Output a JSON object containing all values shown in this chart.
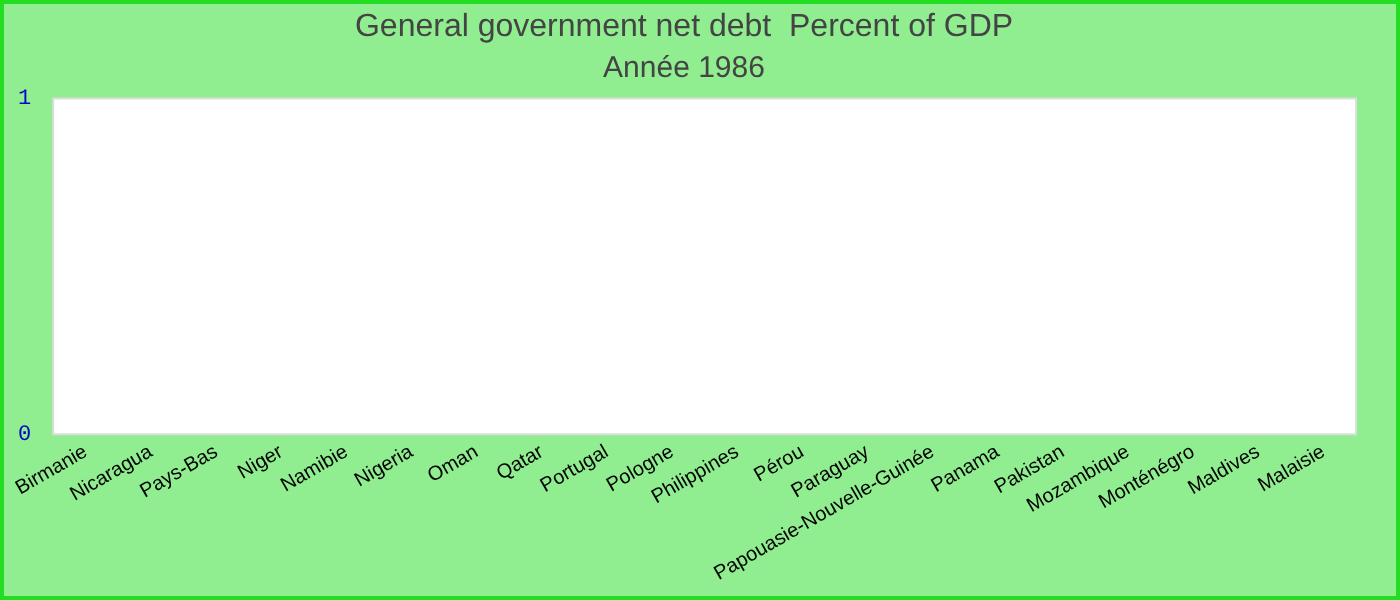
{
  "chart_data": {
    "type": "bar",
    "title": "General government net debt  Percent of GDP",
    "subtitle": "Année 1986",
    "categories": [
      "Birmanie",
      "Nicaragua",
      "Pays-Bas",
      "Niger",
      "Namibie",
      "Nigeria",
      "Oman",
      "Qatar",
      "Portugal",
      "Pologne",
      "Philippines",
      "Pérou",
      "Paraguay",
      "Papouasie-Nouvelle-Guinée",
      "Panama",
      "Pakistan",
      "Mozambique",
      "Monténégro",
      "Maldives",
      "Malaisie"
    ],
    "values": [
      null,
      null,
      null,
      null,
      null,
      null,
      null,
      null,
      null,
      null,
      null,
      null,
      null,
      null,
      null,
      null,
      null,
      null,
      null,
      null
    ],
    "ylim": [
      0,
      1
    ],
    "yticks": [
      0,
      1
    ],
    "grid": false,
    "legend": false
  }
}
